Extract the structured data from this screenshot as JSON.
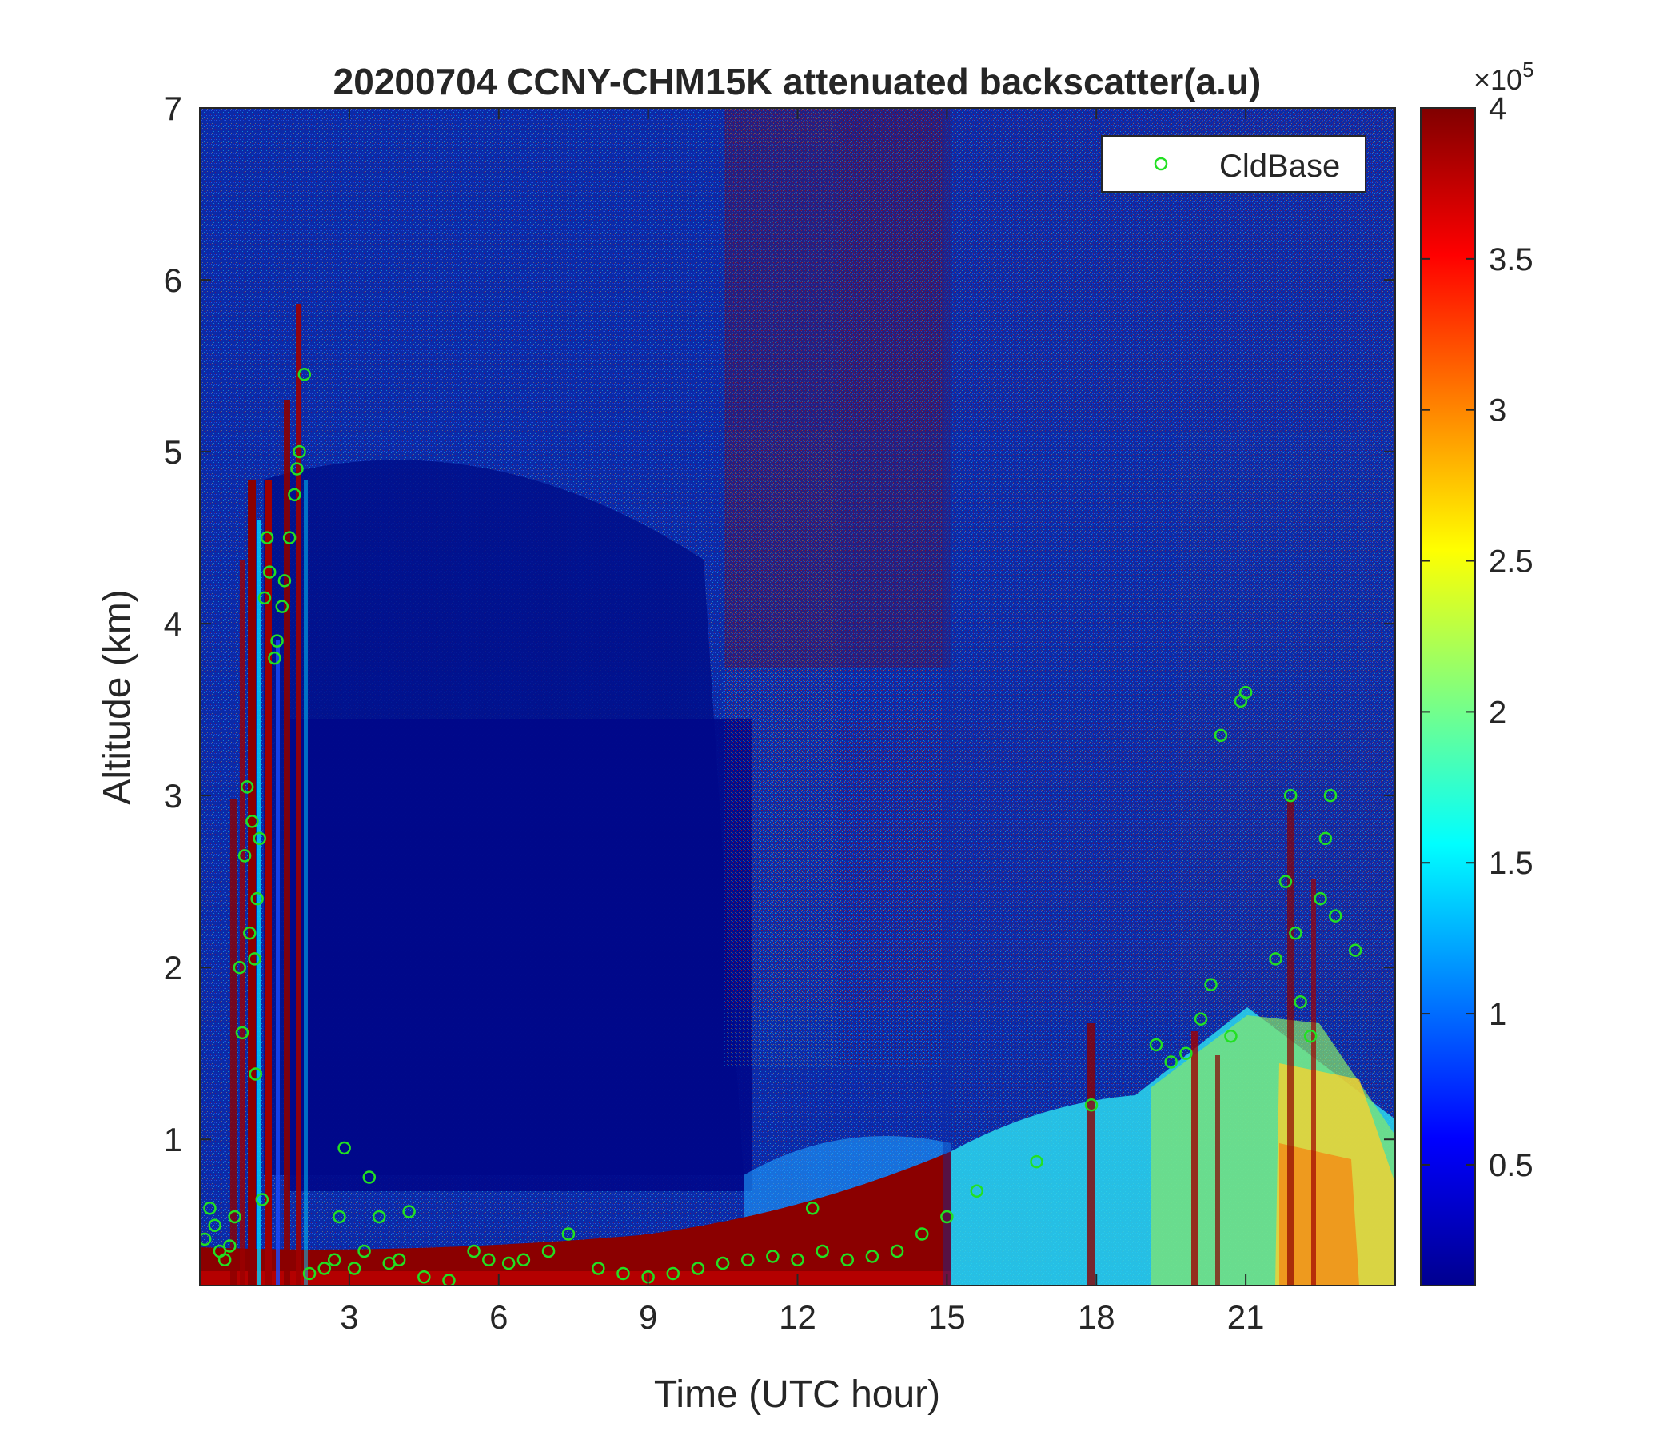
{
  "chart_data": {
    "type": "heatmap",
    "title": "20200704 CCNY-CHM15K attenuated backscatter(a.u)",
    "xlabel": "Time (UTC hour)",
    "ylabel": "Altitude (km)",
    "xlim": [
      0,
      24
    ],
    "ylim": [
      0.15,
      7
    ],
    "x_ticks": [
      3,
      6,
      9,
      12,
      15,
      18,
      21
    ],
    "y_ticks": [
      1,
      2,
      3,
      4,
      5,
      6,
      7
    ],
    "colormap": "jet",
    "colorbar": {
      "min": 0.1,
      "max": 4,
      "ticks": [
        0.5,
        1,
        1.5,
        2,
        2.5,
        3,
        3.5,
        4
      ],
      "exponent_label": "×10",
      "exponent": "5"
    },
    "legend": {
      "position": "top-right",
      "entries": [
        {
          "label": "CldBase",
          "marker": "circle",
          "color": "#22e022"
        }
      ]
    },
    "grid": false,
    "cloud_base_points": {
      "name": "CldBase",
      "color": "#22e022",
      "points": [
        [
          0.1,
          0.42
        ],
        [
          0.2,
          0.6
        ],
        [
          0.3,
          0.5
        ],
        [
          0.4,
          0.35
        ],
        [
          0.5,
          0.3
        ],
        [
          0.6,
          0.38
        ],
        [
          0.7,
          0.55
        ],
        [
          0.8,
          2.0
        ],
        [
          0.85,
          1.62
        ],
        [
          0.9,
          2.65
        ],
        [
          0.95,
          3.05
        ],
        [
          1.0,
          2.2
        ],
        [
          1.05,
          2.85
        ],
        [
          1.1,
          2.05
        ],
        [
          1.12,
          1.38
        ],
        [
          1.15,
          2.4
        ],
        [
          1.2,
          2.75
        ],
        [
          1.25,
          0.65
        ],
        [
          1.3,
          4.15
        ],
        [
          1.35,
          4.5
        ],
        [
          1.4,
          4.3
        ],
        [
          1.5,
          3.8
        ],
        [
          1.55,
          3.9
        ],
        [
          1.65,
          4.1
        ],
        [
          1.7,
          4.25
        ],
        [
          1.8,
          4.5
        ],
        [
          1.9,
          4.75
        ],
        [
          1.95,
          4.9
        ],
        [
          2.0,
          5.0
        ],
        [
          2.1,
          5.45
        ],
        [
          2.2,
          0.22
        ],
        [
          2.5,
          0.25
        ],
        [
          2.7,
          0.3
        ],
        [
          2.8,
          0.55
        ],
        [
          2.9,
          0.95
        ],
        [
          3.1,
          0.25
        ],
        [
          3.3,
          0.35
        ],
        [
          3.4,
          0.78
        ],
        [
          3.6,
          0.55
        ],
        [
          3.8,
          0.28
        ],
        [
          4.0,
          0.3
        ],
        [
          4.2,
          0.58
        ],
        [
          4.5,
          0.2
        ],
        [
          5.0,
          0.18
        ],
        [
          5.5,
          0.35
        ],
        [
          5.8,
          0.3
        ],
        [
          6.2,
          0.28
        ],
        [
          6.5,
          0.3
        ],
        [
          7.0,
          0.35
        ],
        [
          7.4,
          0.45
        ],
        [
          8.0,
          0.25
        ],
        [
          8.5,
          0.22
        ],
        [
          9.0,
          0.2
        ],
        [
          9.5,
          0.22
        ],
        [
          10.0,
          0.25
        ],
        [
          10.5,
          0.28
        ],
        [
          11.0,
          0.3
        ],
        [
          11.5,
          0.32
        ],
        [
          12.0,
          0.3
        ],
        [
          12.3,
          0.6
        ],
        [
          12.5,
          0.35
        ],
        [
          13.0,
          0.3
        ],
        [
          13.5,
          0.32
        ],
        [
          14.0,
          0.35
        ],
        [
          14.5,
          0.45
        ],
        [
          15.0,
          0.55
        ],
        [
          15.6,
          0.7
        ],
        [
          16.8,
          0.87
        ],
        [
          17.9,
          1.2
        ],
        [
          19.2,
          1.55
        ],
        [
          19.5,
          1.45
        ],
        [
          19.8,
          1.5
        ],
        [
          20.1,
          1.7
        ],
        [
          20.3,
          1.9
        ],
        [
          20.5,
          3.35
        ],
        [
          20.9,
          3.55
        ],
        [
          21.0,
          3.6
        ],
        [
          20.7,
          1.6
        ],
        [
          21.6,
          2.05
        ],
        [
          21.8,
          2.5
        ],
        [
          21.9,
          3.0
        ],
        [
          22.0,
          2.2
        ],
        [
          22.1,
          1.8
        ],
        [
          22.3,
          1.6
        ],
        [
          22.5,
          2.4
        ],
        [
          22.6,
          2.75
        ],
        [
          22.7,
          3.0
        ],
        [
          22.8,
          2.3
        ],
        [
          23.2,
          2.1
        ]
      ]
    }
  }
}
